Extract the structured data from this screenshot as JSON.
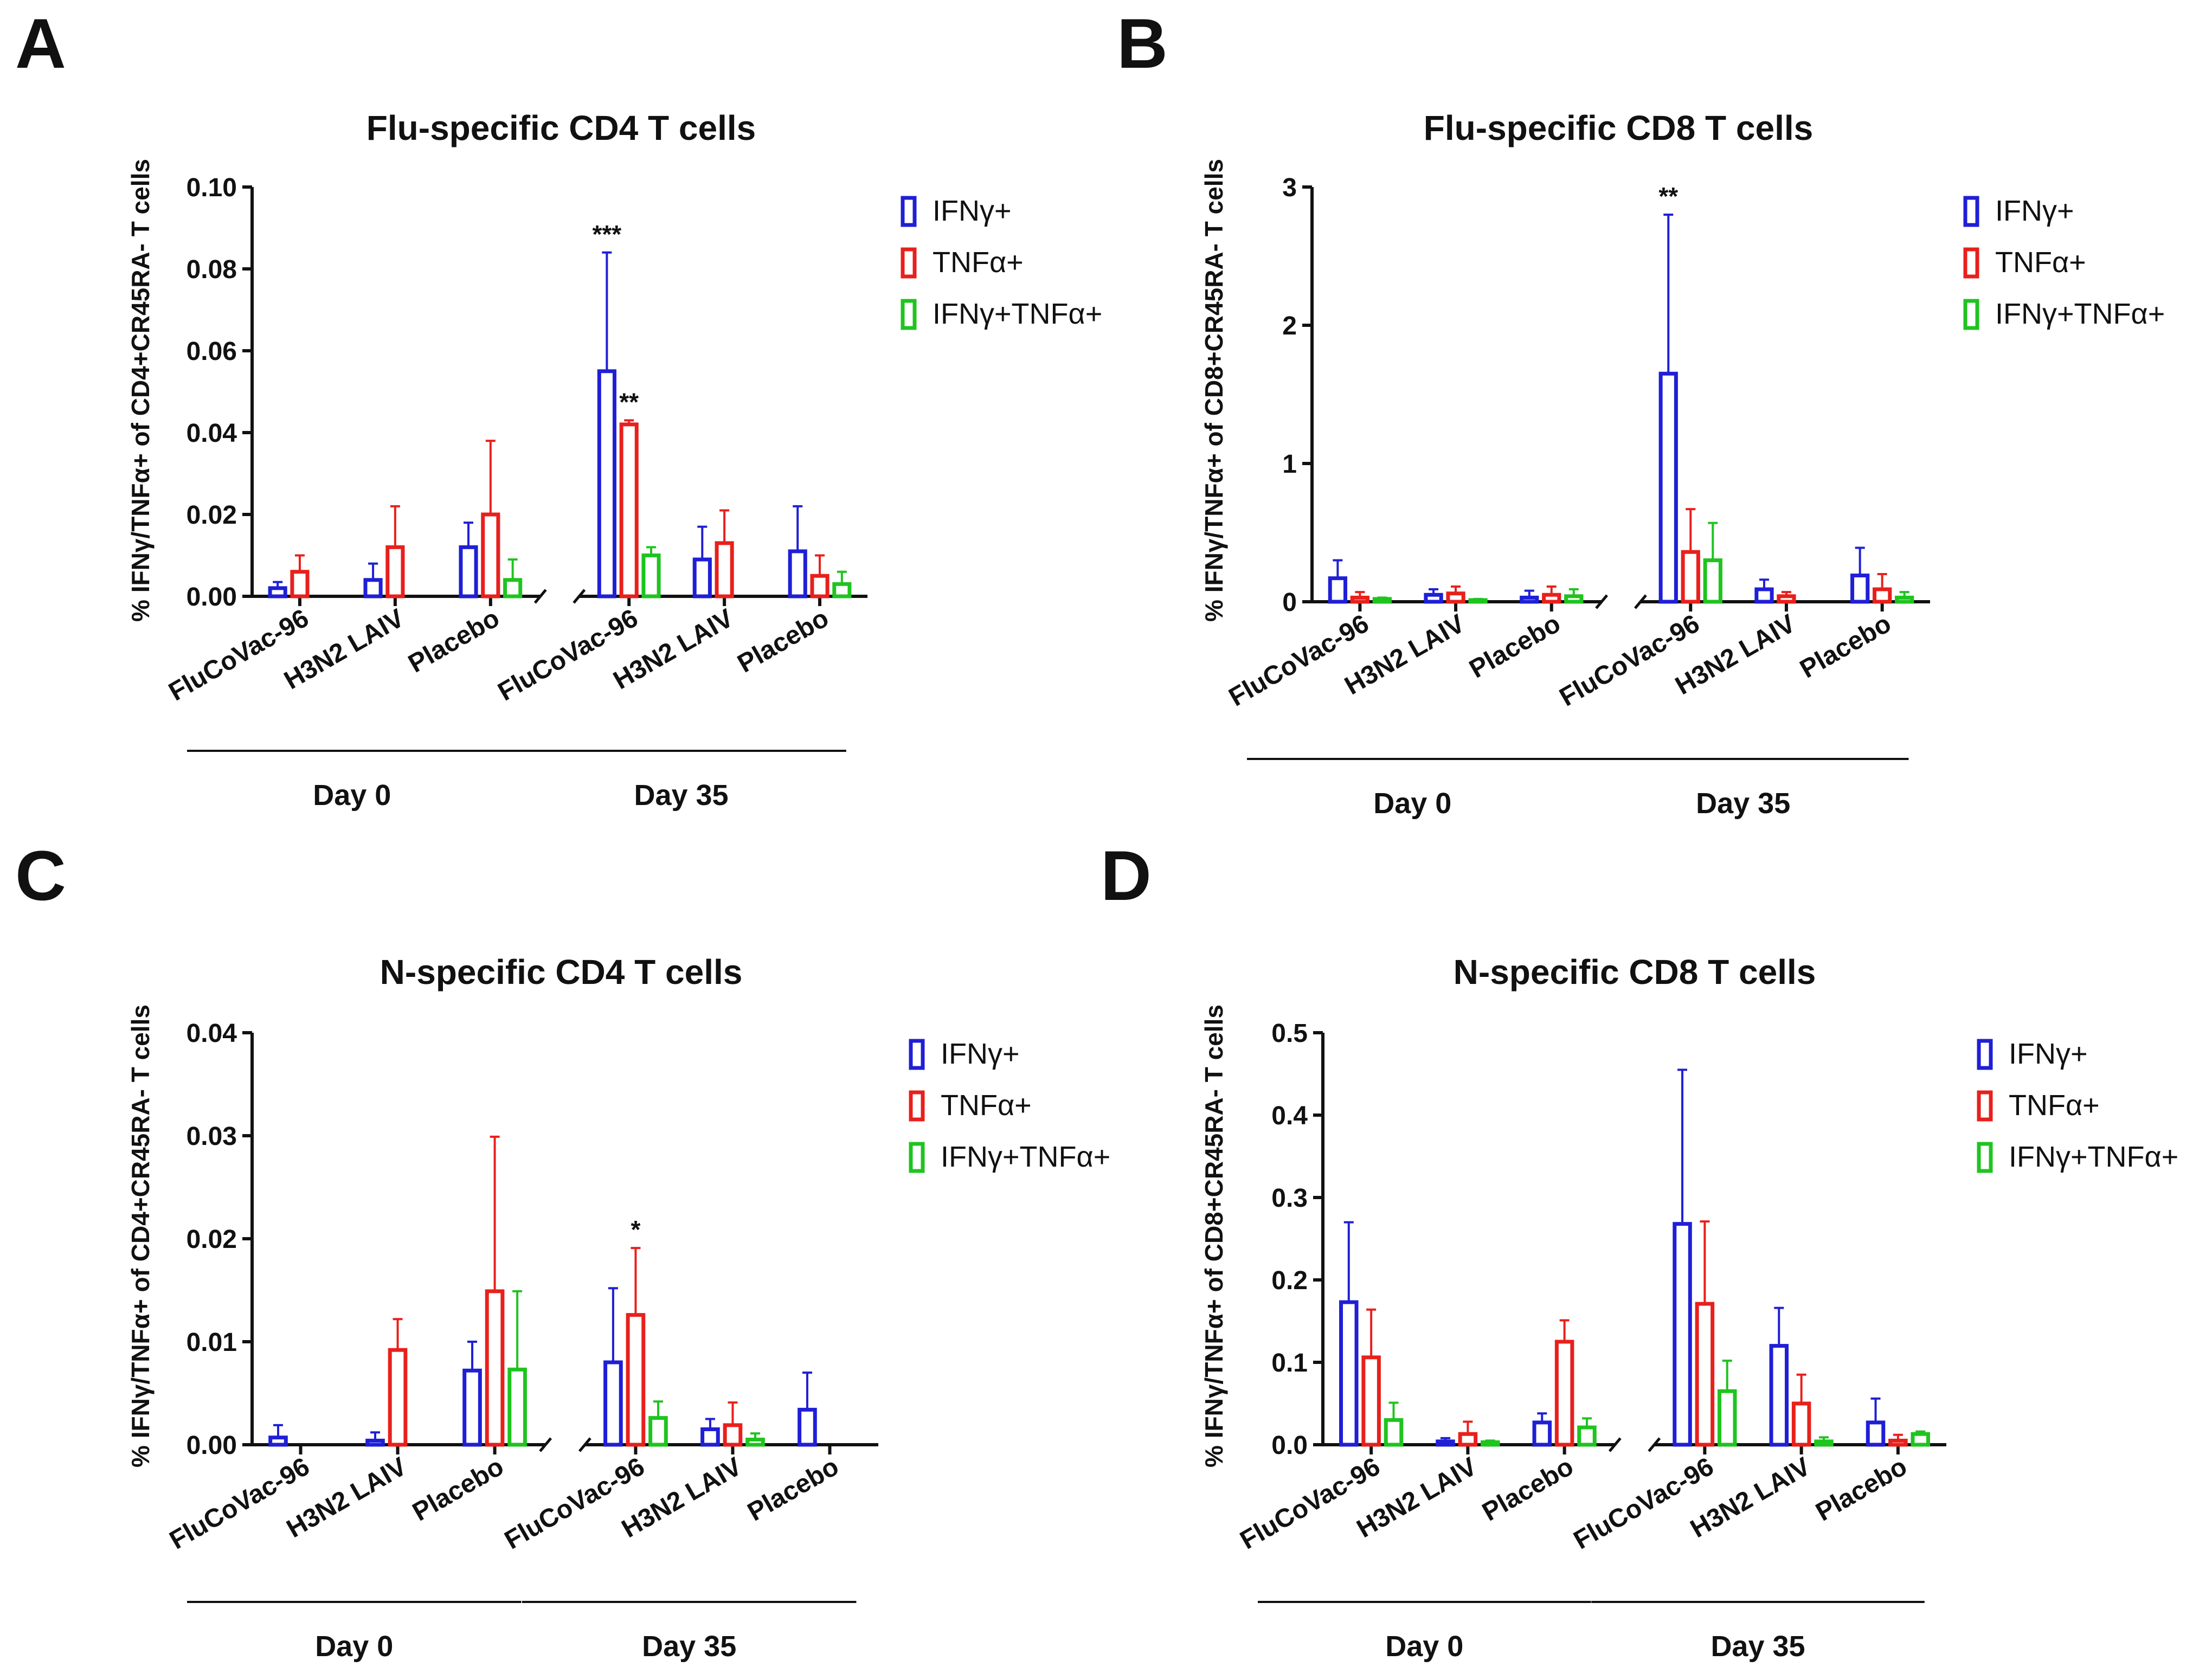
{
  "colors": {
    "IFNg": "#1f1fd6",
    "TNFa": "#e8201c",
    "both": "#1fc41f",
    "axis": "#111111"
  },
  "legend_entries": [
    "IFNγ+",
    "TNFα+",
    "IFNγ+TNFα+"
  ],
  "group_labels": [
    "Day 0",
    "Day 35"
  ],
  "chart_data": [
    {
      "panel": "A",
      "type": "bar",
      "title": "Flu-specific CD4 T cells",
      "ylabel": "% IFNγ/TNFα+ of CD4+CR45RA- T cells",
      "ylim": [
        0,
        0.1
      ],
      "yticks": [
        "0.00",
        "0.02",
        "0.04",
        "0.06",
        "0.08",
        "0.10"
      ],
      "categories": [
        "FluCoVac-96",
        "H3N2 LAIV",
        "Placebo",
        "FluCoVac-96",
        "H3N2 LAIV",
        "Placebo"
      ],
      "groups": [
        "Day 0",
        "Day 35"
      ],
      "series": [
        {
          "name": "IFNγ+",
          "values": [
            0.002,
            0.004,
            0.012,
            0.055,
            0.009,
            0.011
          ],
          "errors": [
            0.0015,
            0.004,
            0.006,
            0.029,
            0.008,
            0.011
          ]
        },
        {
          "name": "TNFα+",
          "values": [
            0.006,
            0.012,
            0.02,
            0.042,
            0.013,
            0.005
          ],
          "errors": [
            0.004,
            0.01,
            0.018,
            0.001,
            0.008,
            0.005
          ]
        },
        {
          "name": "IFNγ+TNFα+",
          "values": [
            null,
            null,
            0.004,
            0.01,
            null,
            0.003
          ],
          "errors": [
            0,
            0,
            0.005,
            0.002,
            0,
            0.003
          ]
        }
      ],
      "annotations": [
        {
          "text": "***",
          "series": 0,
          "category": 3
        },
        {
          "text": "**",
          "series": 1,
          "category": 3
        }
      ]
    },
    {
      "panel": "B",
      "type": "bar",
      "title": "Flu-specific CD8 T cells",
      "ylabel": "% IFNγ/TNFα+ of CD8+CR45RA- T cells",
      "ylim": [
        0,
        3
      ],
      "yticks": [
        "0",
        "1",
        "2",
        "3"
      ],
      "categories": [
        "FluCoVac-96",
        "H3N2 LAIV",
        "Placebo",
        "FluCoVac-96",
        "H3N2 LAIV",
        "Placebo"
      ],
      "groups": [
        "Day 0",
        "Day 35"
      ],
      "series": [
        {
          "name": "IFNγ+",
          "values": [
            0.17,
            0.05,
            0.03,
            1.65,
            0.09,
            0.19
          ],
          "errors": [
            0.13,
            0.04,
            0.05,
            1.15,
            0.07,
            0.2
          ]
        },
        {
          "name": "TNFα+",
          "values": [
            0.03,
            0.06,
            0.05,
            0.36,
            0.04,
            0.09
          ],
          "errors": [
            0.04,
            0.05,
            0.06,
            0.31,
            0.03,
            0.11
          ]
        },
        {
          "name": "IFNγ+TNFα+",
          "values": [
            0.02,
            0.01,
            0.04,
            0.3,
            null,
            0.03
          ],
          "errors": [
            0.01,
            0.01,
            0.05,
            0.27,
            0,
            0.04
          ]
        }
      ],
      "annotations": [
        {
          "text": "**",
          "series": 0,
          "category": 3
        }
      ]
    },
    {
      "panel": "C",
      "type": "bar",
      "title": "N-specific CD4 T cells",
      "ylabel": "% IFNγ/TNFα+ of CD4+CR45RA- T cells",
      "ylim": [
        0,
        0.04
      ],
      "yticks": [
        "0.00",
        "0.01",
        "0.02",
        "0.03",
        "0.04"
      ],
      "categories": [
        "FluCoVac-96",
        "H3N2 LAIV",
        "Placebo",
        "FluCoVac-96",
        "H3N2 LAIV",
        "Placebo"
      ],
      "groups": [
        "Day 0",
        "Day 35"
      ],
      "series": [
        {
          "name": "IFNγ+",
          "values": [
            0.0007,
            0.0004,
            0.0072,
            0.008,
            0.0015,
            0.0034
          ],
          "errors": [
            0.0012,
            0.0008,
            0.0028,
            0.0072,
            0.001,
            0.0036
          ]
        },
        {
          "name": "TNFα+",
          "values": [
            null,
            0.0092,
            0.0149,
            0.0126,
            0.0019,
            null
          ],
          "errors": [
            0,
            0.003,
            0.015,
            0.0065,
            0.0022,
            0
          ]
        },
        {
          "name": "IFNγ+TNFα+",
          "values": [
            null,
            null,
            0.0073,
            0.0026,
            0.0005,
            null
          ],
          "errors": [
            0,
            0,
            0.0076,
            0.0016,
            0.0006,
            0
          ]
        }
      ],
      "annotations": [
        {
          "text": "*",
          "series": 1,
          "category": 3
        }
      ]
    },
    {
      "panel": "D",
      "type": "bar",
      "title": "N-specific CD8 T cells",
      "ylabel": "% IFNγ/TNFα+ of CD8+CR45RA- T cells",
      "ylim": [
        0,
        0.5
      ],
      "yticks": [
        "0.0",
        "0.1",
        "0.2",
        "0.3",
        "0.4",
        "0.5"
      ],
      "categories": [
        "FluCoVac-96",
        "H3N2 LAIV",
        "Placebo",
        "FluCoVac-96",
        "H3N2 LAIV",
        "Placebo"
      ],
      "groups": [
        "Day 0",
        "Day 35"
      ],
      "series": [
        {
          "name": "IFNγ+",
          "values": [
            0.173,
            0.004,
            0.027,
            0.268,
            0.12,
            0.027
          ],
          "errors": [
            0.097,
            0.004,
            0.011,
            0.187,
            0.046,
            0.029
          ]
        },
        {
          "name": "TNFα+",
          "values": [
            0.106,
            0.013,
            0.125,
            0.171,
            0.05,
            0.005
          ],
          "errors": [
            0.058,
            0.015,
            0.026,
            0.1,
            0.035,
            0.007
          ]
        },
        {
          "name": "IFNγ+TNFα+",
          "values": [
            0.03,
            0.003,
            0.021,
            0.065,
            0.004,
            0.013
          ],
          "errors": [
            0.021,
            0.002,
            0.011,
            0.037,
            0.005,
            0.003
          ]
        }
      ],
      "annotations": []
    }
  ]
}
